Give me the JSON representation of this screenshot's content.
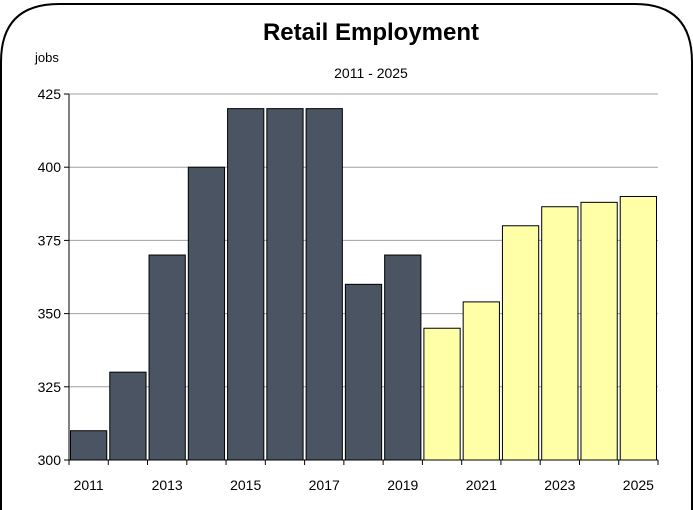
{
  "chart_data": {
    "type": "bar",
    "title": "Retail Employment",
    "subtitle": "2011 - 2025",
    "ylabel": "jobs",
    "xlabel": "",
    "ylim": [
      300,
      425
    ],
    "yticks": [
      300,
      325,
      350,
      375,
      400,
      425
    ],
    "xtick_labels": [
      "2011",
      "2013",
      "2015",
      "2017",
      "2019",
      "2021",
      "2023",
      "2025"
    ],
    "grid": true,
    "legend": "none",
    "colors": {
      "actual": "#4a5462",
      "forecast": "#ffffa8",
      "edge": "#000000",
      "grid": "#a0a0a0"
    },
    "categories": [
      "2011",
      "2012",
      "2013",
      "2014",
      "2015",
      "2016",
      "2017",
      "2018",
      "2019",
      "2020",
      "2021",
      "2022",
      "2023",
      "2024",
      "2025"
    ],
    "values": [
      310,
      330,
      370,
      400,
      420,
      420,
      420,
      360,
      370,
      345,
      354,
      380,
      386.5,
      388,
      390
    ],
    "kinds": [
      "actual",
      "actual",
      "actual",
      "actual",
      "actual",
      "actual",
      "actual",
      "actual",
      "actual",
      "forecast",
      "forecast",
      "forecast",
      "forecast",
      "forecast",
      "forecast"
    ]
  }
}
